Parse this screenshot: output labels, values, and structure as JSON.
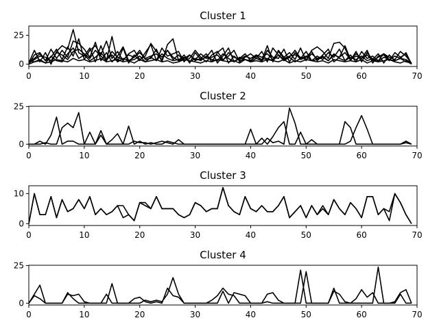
{
  "chart_data": [
    {
      "type": "line",
      "title": "Cluster 1",
      "xlim": [
        0,
        70
      ],
      "ylim": [
        -2,
        33
      ],
      "xticks": [
        0,
        10,
        20,
        30,
        40,
        50,
        60,
        70
      ],
      "yticks": [
        0,
        25
      ],
      "x": [
        0,
        1,
        2,
        3,
        4,
        5,
        6,
        7,
        8,
        9,
        10,
        11,
        12,
        13,
        14,
        15,
        16,
        17,
        18,
        19,
        20,
        21,
        22,
        23,
        24,
        25,
        26,
        27,
        28,
        29,
        30,
        31,
        32,
        33,
        34,
        35,
        36,
        37,
        38,
        39,
        40,
        41,
        42,
        43,
        44,
        45,
        46,
        47,
        48,
        49,
        50,
        51,
        52,
        53,
        54,
        55,
        56,
        57,
        58,
        59,
        60,
        61,
        62,
        63,
        64,
        65,
        66,
        67,
        68,
        69
      ],
      "series": [
        {
          "values": [
            1,
            12,
            2,
            10,
            0,
            11,
            16,
            13,
            30,
            10,
            7,
            14,
            2,
            16,
            3,
            24,
            2,
            14,
            1,
            8,
            3,
            10,
            17,
            3,
            14,
            7,
            9,
            11,
            2,
            8,
            3,
            5,
            9,
            2,
            10,
            14,
            1,
            7,
            3,
            4,
            2,
            5,
            3,
            16,
            2,
            12,
            6,
            10,
            4,
            14,
            3,
            12,
            15,
            11,
            5,
            18,
            19,
            14,
            3,
            11,
            2,
            10,
            4,
            9,
            1,
            8,
            3,
            5,
            2,
            1
          ]
        },
        {
          "values": [
            0,
            8,
            10,
            3,
            13,
            5,
            12,
            6,
            20,
            18,
            13,
            6,
            19,
            3,
            10,
            2,
            7,
            15,
            3,
            6,
            12,
            4,
            5,
            13,
            2,
            17,
            22,
            3,
            8,
            1,
            10,
            4,
            6,
            12,
            1,
            7,
            14,
            2,
            5,
            9,
            3,
            8,
            2,
            12,
            6,
            5,
            13,
            2,
            10,
            4,
            6,
            11,
            3,
            8,
            13,
            2,
            6,
            16,
            4,
            9,
            5,
            12,
            1,
            7,
            8,
            3,
            10,
            6,
            9,
            0
          ]
        },
        {
          "values": [
            2,
            5,
            9,
            3,
            6,
            13,
            4,
            15,
            7,
            22,
            4,
            12,
            16,
            8,
            20,
            5,
            11,
            3,
            9,
            12,
            4,
            7,
            18,
            11,
            6,
            12,
            4,
            8,
            3,
            5,
            12,
            6,
            2,
            8,
            11,
            4,
            7,
            12,
            2,
            6,
            9,
            5,
            11,
            2,
            14,
            8,
            3,
            6,
            12,
            5,
            11,
            3,
            7,
            4,
            10,
            6,
            13,
            3,
            8,
            2,
            11,
            5,
            7,
            3,
            9,
            6,
            4,
            11,
            7,
            1
          ]
        },
        {
          "values": [
            3,
            2,
            4,
            1,
            7,
            3,
            2,
            9,
            14,
            5,
            8,
            3,
            6,
            10,
            4,
            8,
            2,
            5,
            3,
            4,
            7,
            2,
            6,
            3,
            9,
            5,
            3,
            4,
            6,
            2,
            5,
            3,
            7,
            4,
            3,
            9,
            5,
            2,
            6,
            4,
            3,
            7,
            4,
            5,
            3,
            8,
            4,
            6,
            2,
            5,
            7,
            3,
            4,
            6,
            3,
            9,
            5,
            3,
            6,
            4,
            7,
            3,
            5,
            2,
            6,
            4,
            3,
            5,
            4,
            1
          ]
        },
        {
          "values": [
            1,
            4,
            7,
            6,
            3,
            10,
            8,
            4,
            11,
            13,
            9,
            5,
            12,
            7,
            3,
            11,
            6,
            4,
            8,
            6,
            10,
            5,
            7,
            9,
            4,
            12,
            6,
            3,
            5,
            8,
            4,
            9,
            5,
            6,
            8,
            3,
            10,
            6,
            4,
            7,
            5,
            8,
            6,
            9,
            4,
            11,
            5,
            7,
            8,
            6,
            4,
            9,
            5,
            7,
            3,
            8,
            6,
            10,
            4,
            7,
            5,
            8,
            3,
            6,
            9,
            4,
            7,
            5,
            10,
            0
          ]
        },
        {
          "values": [
            0,
            2,
            3,
            1,
            2,
            4,
            3,
            2,
            5,
            3,
            4,
            2,
            3,
            5,
            2,
            3,
            4,
            2,
            3,
            1,
            4,
            2,
            3,
            4,
            2,
            3,
            1,
            2,
            4,
            3,
            2,
            1,
            3,
            2,
            4,
            3,
            2,
            3,
            1,
            4,
            2,
            3,
            2,
            4,
            3,
            2,
            4,
            1,
            3,
            2,
            4,
            3,
            2,
            3,
            1,
            4,
            3,
            2,
            3,
            2,
            4,
            1,
            3,
            2,
            3,
            4,
            2,
            1,
            3,
            0
          ]
        }
      ]
    },
    {
      "type": "line",
      "title": "Cluster 2",
      "xlim": [
        0,
        70
      ],
      "ylim": [
        -1.2,
        25.2
      ],
      "xticks": [
        0,
        10,
        20,
        30,
        40,
        50,
        60,
        70
      ],
      "yticks": [
        0,
        25
      ],
      "x": [
        0,
        1,
        2,
        3,
        4,
        5,
        6,
        7,
        8,
        9,
        10,
        11,
        12,
        13,
        14,
        15,
        16,
        17,
        18,
        19,
        20,
        21,
        22,
        23,
        24,
        25,
        26,
        27,
        28,
        29,
        30,
        31,
        32,
        33,
        34,
        35,
        36,
        37,
        38,
        39,
        40,
        41,
        42,
        43,
        44,
        45,
        46,
        47,
        48,
        49,
        50,
        51,
        52,
        53,
        54,
        55,
        56,
        57,
        58,
        59,
        60,
        61,
        62,
        63,
        64,
        65,
        66,
        67,
        68,
        69
      ],
      "series": [
        {
          "values": [
            0,
            0,
            2,
            0,
            6,
            18,
            0,
            2,
            2,
            0,
            0,
            8,
            0,
            9,
            0,
            3,
            7,
            0,
            0,
            2,
            1,
            1,
            0,
            1,
            2,
            1,
            0,
            3,
            0,
            0,
            0,
            0,
            0,
            0,
            0,
            0,
            0,
            0,
            0,
            0,
            10,
            0,
            4,
            0,
            5,
            11,
            15,
            0,
            0,
            8,
            0,
            3,
            0,
            0,
            0,
            0,
            0,
            0,
            2,
            11,
            19,
            10,
            0,
            0,
            0,
            0,
            0,
            0,
            2,
            0
          ]
        },
        {
          "values": [
            0,
            0,
            0,
            1,
            0,
            0,
            11,
            14,
            11,
            21,
            0,
            0,
            0,
            6,
            0,
            0,
            0,
            0,
            12,
            0,
            2,
            0,
            1,
            0,
            0,
            2,
            1,
            0,
            0,
            0,
            0,
            0,
            0,
            0,
            0,
            0,
            0,
            0,
            0,
            0,
            0,
            0,
            0,
            4,
            1,
            2,
            0,
            24,
            14,
            0,
            0,
            0,
            0,
            0,
            0,
            0,
            0,
            15,
            11,
            0,
            0,
            0,
            0,
            0,
            0,
            0,
            0,
            0,
            1,
            0
          ]
        }
      ]
    },
    {
      "type": "line",
      "title": "Cluster 3",
      "xlim": [
        0,
        70
      ],
      "ylim": [
        -0.6,
        12.6
      ],
      "xticks": [
        0,
        10,
        20,
        30,
        40,
        50,
        60,
        70
      ],
      "yticks": [
        0,
        10
      ],
      "x": [
        0,
        1,
        2,
        3,
        4,
        5,
        6,
        7,
        8,
        9,
        10,
        11,
        12,
        13,
        14,
        15,
        16,
        17,
        18,
        19,
        20,
        21,
        22,
        23,
        24,
        25,
        26,
        27,
        28,
        29,
        30,
        31,
        32,
        33,
        34,
        35,
        36,
        37,
        38,
        39,
        40,
        41,
        42,
        43,
        44,
        45,
        46,
        47,
        48,
        49,
        50,
        51,
        52,
        53,
        54,
        55,
        56,
        57,
        58,
        59,
        60,
        61,
        62,
        63,
        64,
        65,
        66,
        67,
        68,
        69
      ],
      "series": [
        {
          "values": [
            0,
            10,
            3,
            3,
            9,
            2,
            8,
            4,
            5,
            8,
            5,
            9,
            3,
            5,
            3,
            4,
            6,
            2,
            3,
            1,
            7,
            7,
            5,
            9,
            5,
            5,
            5,
            3,
            2,
            3,
            7,
            6,
            4,
            5,
            5,
            12,
            6,
            4,
            3,
            9,
            5,
            4,
            6,
            4,
            4,
            6,
            9,
            2,
            4,
            6,
            2,
            6,
            3,
            6,
            3,
            8,
            5,
            3,
            7,
            5,
            2,
            9,
            9,
            3,
            5,
            4,
            10,
            7,
            3,
            0
          ]
        },
        {
          "values": [
            0,
            10,
            3,
            3,
            9,
            2,
            8,
            4,
            5,
            8,
            5,
            9,
            3,
            5,
            3,
            4,
            6,
            6,
            3,
            1,
            7,
            6,
            5,
            9,
            5,
            5,
            5,
            3,
            2,
            3,
            7,
            6,
            4,
            5,
            5,
            12,
            6,
            4,
            3,
            9,
            5,
            4,
            6,
            4,
            4,
            6,
            9,
            2,
            4,
            6,
            2,
            6,
            3,
            5,
            3,
            8,
            5,
            3,
            7,
            5,
            2,
            9,
            9,
            3,
            5,
            1,
            10,
            7,
            3,
            0
          ]
        }
      ]
    },
    {
      "type": "line",
      "title": "Cluster 4",
      "xlim": [
        0,
        70
      ],
      "ylim": [
        -1.2,
        25.2
      ],
      "xticks": [
        0,
        10,
        20,
        30,
        40,
        50,
        60,
        70
      ],
      "yticks": [
        0,
        25
      ],
      "x": [
        0,
        1,
        2,
        3,
        4,
        5,
        6,
        7,
        8,
        9,
        10,
        11,
        12,
        13,
        14,
        15,
        16,
        17,
        18,
        19,
        20,
        21,
        22,
        23,
        24,
        25,
        26,
        27,
        28,
        29,
        30,
        31,
        32,
        33,
        34,
        35,
        36,
        37,
        38,
        39,
        40,
        41,
        42,
        43,
        44,
        45,
        46,
        47,
        48,
        49,
        50,
        51,
        52,
        53,
        54,
        55,
        56,
        57,
        58,
        59,
        60,
        61,
        62,
        63,
        64,
        65,
        66,
        67,
        68,
        69
      ],
      "series": [
        {
          "values": [
            0,
            6,
            12,
            0,
            0,
            0,
            0,
            7,
            3,
            0,
            0,
            0,
            0,
            0,
            6,
            0,
            0,
            0,
            0,
            3,
            4,
            1,
            0,
            1,
            0,
            10,
            5,
            4,
            0,
            0,
            0,
            0,
            0,
            2,
            5,
            10,
            6,
            5,
            0,
            0,
            0,
            0,
            0,
            6,
            7,
            2,
            0,
            0,
            0,
            22,
            0,
            0,
            0,
            0,
            0,
            10,
            0,
            0,
            0,
            3,
            9,
            4,
            7,
            0,
            0,
            0,
            1,
            7,
            9,
            0
          ]
        },
        {
          "values": [
            0,
            5,
            3,
            0,
            0,
            0,
            0,
            6,
            5,
            6,
            1,
            0,
            0,
            0,
            0,
            13,
            0,
            0,
            0,
            0,
            0,
            2,
            1,
            2,
            1,
            6,
            17,
            6,
            0,
            0,
            0,
            0,
            0,
            0,
            0,
            8,
            0,
            7,
            6,
            5,
            0,
            0,
            0,
            1,
            0,
            0,
            0,
            0,
            0,
            0,
            21,
            0,
            0,
            0,
            0,
            8,
            6,
            1,
            0,
            0,
            0,
            0,
            0,
            24,
            0,
            0,
            0,
            6,
            0,
            0
          ]
        }
      ]
    }
  ]
}
